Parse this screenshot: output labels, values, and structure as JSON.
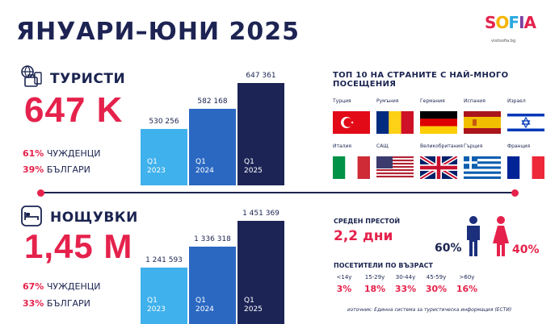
{
  "title": "ЯНУАРИ–ЮНИ 2025",
  "logo": {
    "letters": [
      "S",
      "O",
      "F",
      "I",
      "A"
    ],
    "url": "visitsofia.bg"
  },
  "tourists": {
    "label": "ТУРИСТИ",
    "big": "647 K",
    "foreign": {
      "pct": "61%",
      "label": "ЧУЖДЕНЦИ"
    },
    "bulgarian": {
      "pct": "39%",
      "label": "БЪЛГАРИ"
    }
  },
  "nights": {
    "label": "НОЩУВКИ",
    "big": "1,45 M",
    "foreign": {
      "pct": "67%",
      "label": "ЧУЖДЕНЦИ"
    },
    "bulgarian": {
      "pct": "33%",
      "label": "БЪЛГАРИ"
    }
  },
  "chart_data": [
    {
      "type": "bar",
      "categories": [
        "Q1 2023",
        "Q1 2024",
        "Q1 2025"
      ],
      "period_top": [
        "Q1",
        "Q1",
        "Q1"
      ],
      "period_bottom": [
        "2023",
        "2024",
        "2025"
      ],
      "values": [
        530256,
        582168,
        647361
      ],
      "value_labels": [
        "530 256",
        "582 168",
        "647 361"
      ],
      "colors": [
        "#3fb1ec",
        "#2a68c2",
        "#1c2456"
      ],
      "ylim": [
        0,
        647361
      ]
    },
    {
      "type": "bar",
      "categories": [
        "Q1 2023",
        "Q1 2024",
        "Q1 2025"
      ],
      "period_top": [
        "Q1",
        "Q1",
        "Q1"
      ],
      "period_bottom": [
        "2023",
        "2024",
        "2025"
      ],
      "values": [
        1241593,
        1336318,
        1451369
      ],
      "value_labels": [
        "1 241 593",
        "1 336 318",
        "1 451 369"
      ],
      "colors": [
        "#3fb1ec",
        "#2a68c2",
        "#1c2456"
      ],
      "ylim": [
        0,
        1451369
      ]
    }
  ],
  "top10": {
    "title": "ТОП 10 НА СТРАНИТЕ С НАЙ-МНОГО ПОСЕЩЕНИЯ",
    "countries": [
      {
        "name": "Турция",
        "flag": "tr"
      },
      {
        "name": "Румъния",
        "flag": "ro"
      },
      {
        "name": "Германия",
        "flag": "de"
      },
      {
        "name": "Испания",
        "flag": "es"
      },
      {
        "name": "Израел",
        "flag": "il"
      },
      {
        "name": "Италия",
        "flag": "it"
      },
      {
        "name": "САЩ",
        "flag": "us"
      },
      {
        "name": "Великобритания",
        "flag": "gb"
      },
      {
        "name": "Гърция",
        "flag": "gr"
      },
      {
        "name": "Франция",
        "flag": "fr"
      }
    ]
  },
  "stay": {
    "label": "СРЕДЕН ПРЕСТОЙ",
    "value": "2,2 дни"
  },
  "gender": {
    "male": "60%",
    "female": "40%",
    "male_color": "#1c2f7c",
    "female_color": "#e5224c"
  },
  "age": {
    "title": "ПОСЕТИТЕЛИ ПО ВЪЗРАСТ",
    "groups": [
      {
        "range": "<14y",
        "pct": "3%"
      },
      {
        "range": "15-29y",
        "pct": "18%"
      },
      {
        "range": "30-44y",
        "pct": "33%"
      },
      {
        "range": "45-59y",
        "pct": "30%"
      },
      {
        "range": ">60y",
        "pct": "16%"
      }
    ]
  },
  "source": "източник: Единна система за туристическа информация (ЕСТИ)"
}
